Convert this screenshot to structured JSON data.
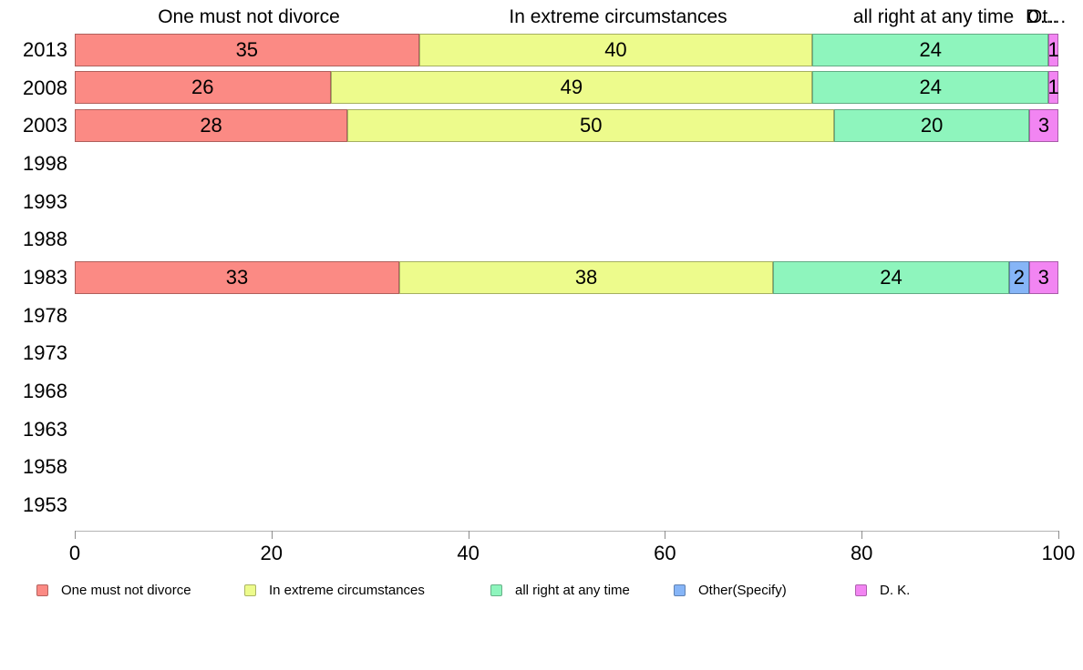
{
  "chart_data": {
    "type": "bar",
    "stacked": true,
    "horizontal": true,
    "title": "",
    "xlabel": "",
    "ylabel": "",
    "xlim": [
      0,
      100
    ],
    "x_ticks": [
      "0",
      "20",
      "40",
      "60",
      "80",
      "100"
    ],
    "grid": false,
    "legend_position": "bottom",
    "column_headers": [
      "One must not divorce",
      "In extreme circumstances",
      "all right at any time",
      "Ot…",
      "D…"
    ],
    "categories": [
      "2013",
      "2008",
      "2003",
      "1998",
      "1993",
      "1988",
      "1983",
      "1978",
      "1973",
      "1968",
      "1963",
      "1958",
      "1953"
    ],
    "series": [
      {
        "name": "One must not divorce",
        "color": "#fb8a84",
        "values": [
          35,
          26,
          28,
          null,
          null,
          null,
          33,
          null,
          null,
          null,
          null,
          null,
          null
        ]
      },
      {
        "name": "In extreme circumstances",
        "color": "#edfb8c",
        "values": [
          40,
          49,
          50,
          null,
          null,
          null,
          38,
          null,
          null,
          null,
          null,
          null,
          null
        ]
      },
      {
        "name": "all right at any time",
        "color": "#8ef5bd",
        "values": [
          24,
          24,
          20,
          null,
          null,
          null,
          24,
          null,
          null,
          null,
          null,
          null,
          null
        ]
      },
      {
        "name": "Other(Specify)",
        "color": "#86b5f7",
        "values": [
          null,
          null,
          null,
          null,
          null,
          null,
          2,
          null,
          null,
          null,
          null,
          null,
          null
        ]
      },
      {
        "name": "D. K.",
        "color": "#f285f2",
        "values": [
          1,
          1,
          3,
          null,
          null,
          null,
          3,
          null,
          null,
          null,
          null,
          null,
          null
        ]
      }
    ]
  },
  "legend": {
    "items": [
      {
        "label": "One must not divorce",
        "color": "#fb8a84"
      },
      {
        "label": "In extreme circumstances",
        "color": "#edfb8c"
      },
      {
        "label": "all right at any time",
        "color": "#8ef5bd"
      },
      {
        "label": "Other(Specify)",
        "color": "#86b5f7"
      },
      {
        "label": "D. K.",
        "color": "#f285f2"
      }
    ]
  }
}
